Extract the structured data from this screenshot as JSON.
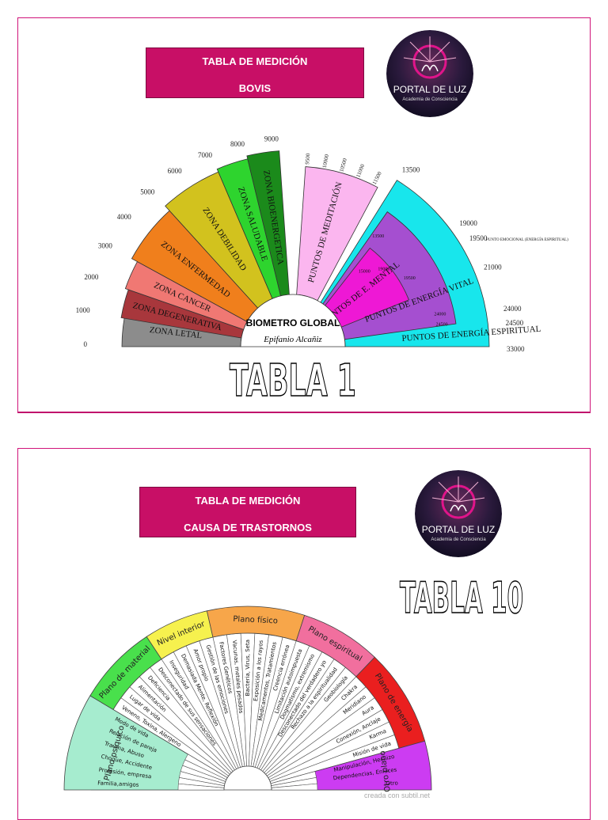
{
  "card1": {
    "title_line1": "TABLA DE MEDICIÓN",
    "title_line2": "BOVIS",
    "logo_name": "PORTAL DE LUZ",
    "logo_tagline": "Academia de Consciencia",
    "table_label": "TABLA 1",
    "center_label": "BIOMETRO GLOBAL",
    "signature": "Epifanio Alcañiz"
  },
  "card2": {
    "title_line1": "TABLA DE MEDICIÓN",
    "title_line2": "CAUSA DE TRASTORNOS",
    "logo_name": "PORTAL DE LUZ",
    "logo_tagline": "Academia de Consciencia",
    "table_label": "TABLA 10",
    "watermark": "creada con subtil.net"
  },
  "chart_data": [
    {
      "type": "pie",
      "title": "BIOMETRO GLOBAL",
      "left_scale_ticks": [
        "0",
        "1000",
        "2000",
        "3000",
        "4000",
        "5000",
        "6000",
        "7000",
        "8000",
        "9000"
      ],
      "zones": [
        {
          "label": "ZONA LETAL",
          "from": 0,
          "to": 1000,
          "color": "#8c8c8c"
        },
        {
          "label": "ZONA DEGENERATIVA",
          "from": 1000,
          "to": 2000,
          "color": "#a8373c"
        },
        {
          "label": "ZONA CANCER",
          "from": 2000,
          "to": 3000,
          "color": "#f07873"
        },
        {
          "label": "ZONA ENFERMEDAD",
          "from": 3000,
          "to": 5000,
          "color": "#f07f1c"
        },
        {
          "label": "ZONA DEBILIDAD",
          "from": 5000,
          "to": 7000,
          "color": "#d2c21e"
        },
        {
          "label": "ZONA SALUDABLE",
          "from": 7000,
          "to": 8000,
          "color": "#2ed42e"
        },
        {
          "label": "ZONA BIOENERGETICA",
          "from": 8000,
          "to": 9000,
          "color": "#1b8a1b"
        },
        {
          "label": "PUNTOS DE MEDITACIÓN",
          "from": 9500,
          "to": 13500,
          "color": "#fbb6ef"
        },
        {
          "label": "PUNTOS DE E. MENTAL",
          "from": 15000,
          "to": 19500,
          "color": "#ee18d5"
        },
        {
          "label": "PUNTOS DE ENERGÍA VITAL",
          "from": 13500,
          "to": 24500,
          "color": "#a54fd0"
        },
        {
          "label": "PUNTOS DE ENERGÍA ESPIRITUAL",
          "from": 13500,
          "to": 33000,
          "color": "#18e6ec"
        }
      ],
      "meditation_ticks": [
        "9500",
        "10000",
        "10500",
        "11000",
        "11500"
      ],
      "right_scale_ticks": [
        "13500",
        "19000",
        "19500",
        "21000",
        "24000",
        "24500",
        "33000"
      ],
      "inner_ticks": [
        "13500",
        "15000",
        "19000",
        "19500",
        "24000",
        "24500"
      ],
      "annotation": "PUNTO EMOCIONAL (ENERGÍA ESPIRITUAL)"
    },
    {
      "type": "pie",
      "categories": [
        {
          "label": "Plano psíquico",
          "color": "#a6eccf"
        },
        {
          "label": "Plano de material",
          "color": "#49e04c"
        },
        {
          "label": "Nivel interior",
          "color": "#f6f14e"
        },
        {
          "label": "Plano físico",
          "color": "#f7a64a"
        },
        {
          "label": "Plano espiritual",
          "color": "#f16f9e"
        },
        {
          "label": "Plano de energía",
          "color": "#ea1f1f"
        },
        {
          "label": "Otro plano",
          "color": "#cc3cf2"
        }
      ],
      "items": [
        "Familia,amigos",
        "Profesión, empresa",
        "Choque, Accidente",
        "Trauma, Abuso",
        "Relación de pareja",
        "Modo de vida",
        "Veneno, Toxina, Alergeno",
        "Lugar de vida",
        "Alimentación",
        "Deficiencia",
        "Desconectado de sus sensaciones",
        "Inseguridad",
        "Demasiada Mente, Reflexión",
        "Amor propio",
        "Gestión de las emociones",
        "Factores Genéticos",
        "Vacunas, metales pesados",
        "Bacteria, Virus, Seta",
        "Exposición a los rayos",
        "Medicamentos, Tratamientos",
        "Creencia errónea",
        "Limitación autoimpuesta",
        "Dogmatismo, extremismo",
        "Desconectado del verdadero yo",
        "Rechazo a la espiritualidad",
        "Geobiología",
        "Chakra",
        "Meridiano",
        "Aura",
        "Conexión, Anclaje",
        "Karma",
        "Misión de vida",
        "Manipulación, Hechizo",
        "Dependencias, Enlaces",
        "Otro"
      ]
    }
  ]
}
